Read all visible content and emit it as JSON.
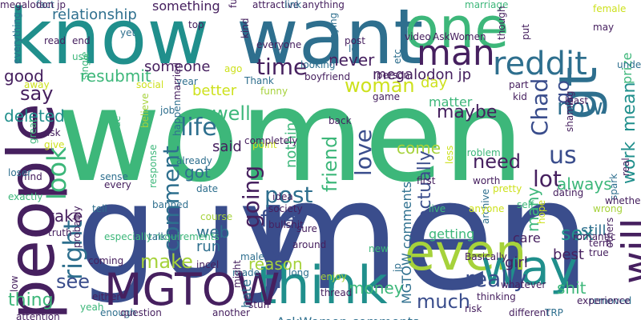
{
  "palette": {
    "dark_purple": "#46205f",
    "blue": "#3a4d8c",
    "teal_blue": "#2e6f8e",
    "teal": "#208f8c",
    "green": "#3db77a",
    "lime": "#a6d23b",
    "yellow": "#cde11d"
  },
  "words": [
    {
      "text": "women",
      "color": "#3db77a"
    },
    {
      "text": "men",
      "color": "#3a4d8c"
    },
    {
      "text": "guy",
      "color": "#3a4d8c"
    },
    {
      "text": "know",
      "color": "#208f8c"
    },
    {
      "text": "want",
      "color": "#2e6f8e"
    },
    {
      "text": "one",
      "color": "#3db77a"
    },
    {
      "text": "people",
      "color": "#46205f"
    },
    {
      "text": "think",
      "color": "#208f8c"
    },
    {
      "text": "even",
      "color": "#a6d23b"
    },
    {
      "text": "way",
      "color": "#208f8c"
    },
    {
      "text": "MGTOW",
      "color": "#46205f"
    },
    {
      "text": "man",
      "color": "#46205f"
    },
    {
      "text": "reddit",
      "color": "#2e6f8e"
    },
    {
      "text": "gt",
      "color": "#2e6f8e"
    },
    {
      "text": "will",
      "color": "#46205f"
    },
    {
      "text": "woman",
      "color": "#cde11d"
    },
    {
      "text": "time",
      "color": "#46205f"
    },
    {
      "text": "life",
      "color": "#2e6f8e"
    },
    {
      "text": "look",
      "color": "#3db77a"
    },
    {
      "text": "right",
      "color": "#2e6f8e"
    },
    {
      "text": "post",
      "color": "#2e6f8e"
    },
    {
      "text": "feel",
      "color": "#3a4d8c"
    },
    {
      "text": "going",
      "color": "#46205f"
    },
    {
      "text": "comment",
      "color": "#2e6f8e"
    },
    {
      "text": "make",
      "color": "#a6d23b"
    },
    {
      "text": "see",
      "color": "#3a4d8c"
    },
    {
      "text": "thing",
      "color": "#3db77a"
    },
    {
      "text": "much",
      "color": "#3a4d8c"
    },
    {
      "text": "really",
      "color": "#3a4d8c"
    },
    {
      "text": "love",
      "color": "#3a4d8c"
    },
    {
      "text": "us",
      "color": "#3a4d8c"
    },
    {
      "text": "lot",
      "color": "#46205f"
    },
    {
      "text": "need",
      "color": "#46205f"
    },
    {
      "text": "friend",
      "color": "#3db77a"
    },
    {
      "text": "work",
      "color": "#208f8c"
    },
    {
      "text": "mean",
      "color": "#208f8c"
    },
    {
      "text": "now",
      "color": "#2e6f8e"
    },
    {
      "text": "go",
      "color": "#3a4d8c"
    },
    {
      "text": "Chad",
      "color": "#3a4d8c"
    },
    {
      "text": "sex",
      "color": "#208f8c"
    },
    {
      "text": "say",
      "color": "#46205f"
    },
    {
      "text": "good",
      "color": "#46205f"
    },
    {
      "text": "resubmit",
      "color": "#3db77a"
    },
    {
      "text": "never",
      "color": "#46205f"
    },
    {
      "text": "someone",
      "color": "#46205f"
    },
    {
      "text": "better",
      "color": "#cde11d"
    },
    {
      "text": "megalodon jp",
      "color": "#46205f"
    },
    {
      "text": "relationship",
      "color": "#2e6f8e"
    },
    {
      "text": "something",
      "color": "#46205f"
    },
    {
      "text": "matter",
      "color": "#3db77a"
    },
    {
      "text": "prize",
      "color": "#3db77a"
    },
    {
      "text": "day",
      "color": "#cde11d"
    },
    {
      "text": "maybe",
      "color": "#46205f"
    },
    {
      "text": "deleted",
      "color": "#208f8c"
    },
    {
      "text": "well",
      "color": "#3db77a"
    },
    {
      "text": "said",
      "color": "#46205f"
    },
    {
      "text": "got",
      "color": "#2e6f8e"
    },
    {
      "text": "take",
      "color": "#46205f"
    },
    {
      "text": "web",
      "color": "#2e6f8e"
    },
    {
      "text": "run",
      "color": "#2e6f8e"
    },
    {
      "text": "reason",
      "color": "#a6d23b"
    },
    {
      "text": "money",
      "color": "#3db77a"
    },
    {
      "text": "getting",
      "color": "#3db77a"
    },
    {
      "text": "care",
      "color": "#46205f"
    },
    {
      "text": "best",
      "color": "#46205f"
    },
    {
      "text": "girl",
      "color": "#46205f"
    },
    {
      "text": "shit",
      "color": "#3db77a"
    },
    {
      "text": "still",
      "color": "#2e6f8e"
    },
    {
      "text": "always",
      "color": "#3db77a"
    },
    {
      "text": "come",
      "color": "#a6d23b"
    },
    {
      "text": "actually",
      "color": "#3a4d8c"
    },
    {
      "text": "nothing",
      "color": "#3db77a"
    },
    {
      "text": "AskWomen comments",
      "color": "#2e6f8e"
    },
    {
      "text": "MGTOW comments",
      "color": "#2e6f8e"
    },
    {
      "text": "hate",
      "color": "#2e6f8e"
    },
    {
      "text": "many",
      "color": "#3db77a"
    },
    {
      "text": "fact",
      "color": "#2e6f8e"
    },
    {
      "text": "attractive anything",
      "color": "#46205f"
    },
    {
      "text": "marriage",
      "color": "#3db77a"
    },
    {
      "text": "fuck",
      "color": "#46205f"
    },
    {
      "text": "everything",
      "color": "#2e6f8e"
    },
    {
      "text": "read",
      "color": "#46205f"
    },
    {
      "text": "end",
      "color": "#46205f"
    },
    {
      "text": "yet",
      "color": "#2e6f8e"
    },
    {
      "text": "use",
      "color": "#3db77a"
    },
    {
      "text": "job",
      "color": "#2e6f8e"
    },
    {
      "text": "kind",
      "color": "#46205f"
    },
    {
      "text": "everyone",
      "color": "#46205f"
    },
    {
      "text": "saying",
      "color": "#2e6f8e"
    },
    {
      "text": "lol",
      "color": "#2e6f8e"
    },
    {
      "text": "etc",
      "color": "#2e6f8e"
    },
    {
      "text": "video",
      "color": "#46205f"
    },
    {
      "text": "AskWomen",
      "color": "#46205f"
    },
    {
      "text": "though",
      "color": "#46205f"
    },
    {
      "text": "put",
      "color": "#46205f"
    },
    {
      "text": "female",
      "color": "#cde11d"
    },
    {
      "text": "may",
      "color": "#46205f"
    },
    {
      "text": "person",
      "color": "#46205f"
    },
    {
      "text": "boyfriend",
      "color": "#46205f"
    },
    {
      "text": "looking",
      "color": "#2e6f8e"
    },
    {
      "text": "Thank",
      "color": "#2e6f8e"
    },
    {
      "text": "funny",
      "color": "#a6d23b"
    },
    {
      "text": "social",
      "color": "#cde11d"
    },
    {
      "text": "year",
      "color": "#2e6f8e"
    },
    {
      "text": "game",
      "color": "#46205f"
    },
    {
      "text": "part",
      "color": "#46205f"
    },
    {
      "text": "single",
      "color": "#3db77a"
    },
    {
      "text": "away",
      "color": "#cde11d"
    },
    {
      "text": "married",
      "color": "#46205f"
    },
    {
      "text": "ask",
      "color": "#46205f"
    },
    {
      "text": "give",
      "color": "#cde11d"
    },
    {
      "text": "dude",
      "color": "#3db77a"
    },
    {
      "text": "sense",
      "color": "#2e6f8e"
    },
    {
      "text": "every",
      "color": "#46205f"
    },
    {
      "text": "find",
      "color": "#46205f"
    },
    {
      "text": "loser",
      "color": "#2e6f8e"
    },
    {
      "text": "great",
      "color": "#3db77a"
    },
    {
      "text": "exactly",
      "color": "#3db77a"
    },
    {
      "text": "truth",
      "color": "#46205f"
    },
    {
      "text": "tell",
      "color": "#2e6f8e"
    },
    {
      "text": "low",
      "color": "#46205f"
    },
    {
      "text": "especially requirements",
      "color": "#3db77a"
    },
    {
      "text": "probably",
      "color": "#46205f"
    },
    {
      "text": "coming",
      "color": "#46205f"
    },
    {
      "text": "either",
      "color": "#46205f"
    },
    {
      "text": "yeah",
      "color": "#3db77a"
    },
    {
      "text": "enough",
      "color": "#2e6f8e"
    },
    {
      "text": "question",
      "color": "#46205f"
    },
    {
      "text": "attention",
      "color": "#46205f"
    },
    {
      "text": "incel",
      "color": "#46205f"
    },
    {
      "text": "made",
      "color": "#2e6f8e"
    },
    {
      "text": "might",
      "color": "#46205f"
    },
    {
      "text": "long",
      "color": "#2e6f8e"
    },
    {
      "text": "enjoy",
      "color": "#a6d23b"
    },
    {
      "text": "stuff",
      "color": "#46205f"
    },
    {
      "text": "another",
      "color": "#46205f"
    },
    {
      "text": "thread",
      "color": "#46205f"
    },
    {
      "text": "Basically",
      "color": "#46205f"
    },
    {
      "text": "risk",
      "color": "#46205f"
    },
    {
      "text": "different",
      "color": "#46205f"
    },
    {
      "text": "TRP",
      "color": "#2e6f8e"
    },
    {
      "text": "removed",
      "color": "#2e6f8e"
    },
    {
      "text": "term",
      "color": "#46205f"
    },
    {
      "text": "true",
      "color": "#46205f"
    },
    {
      "text": "others",
      "color": "#46205f"
    },
    {
      "text": "wrong",
      "color": "#a6d23b"
    },
    {
      "text": "spark",
      "color": "#2e6f8e"
    },
    {
      "text": "whether",
      "color": "#46205f"
    },
    {
      "text": "real",
      "color": "#46205f"
    },
    {
      "text": "understand",
      "color": "#2e6f8e"
    },
    {
      "text": "self",
      "color": "#3db77a"
    },
    {
      "text": "pretty",
      "color": "#cde11d"
    },
    {
      "text": "worth",
      "color": "#46205f"
    },
    {
      "text": "whatever",
      "color": "#46205f"
    },
    {
      "text": "problem",
      "color": "#3db77a"
    },
    {
      "text": "first",
      "color": "#46205f"
    },
    {
      "text": "less",
      "color": "#cde11d"
    },
    {
      "text": "live",
      "color": "#3db77a"
    },
    {
      "text": "idea",
      "color": "#46205f"
    },
    {
      "text": "society",
      "color": "#46205f"
    },
    {
      "text": "bullshit",
      "color": "#46205f"
    },
    {
      "text": "sure",
      "color": "#46205f"
    },
    {
      "text": "around",
      "color": "#46205f"
    },
    {
      "text": "male",
      "color": "#2e6f8e"
    },
    {
      "text": "back",
      "color": "#46205f"
    },
    {
      "text": "happen",
      "color": "#2e6f8e"
    },
    {
      "text": "believe",
      "color": "#a6d23b"
    },
    {
      "text": "response",
      "color": "#3db77a"
    },
    {
      "text": "course",
      "color": "#a6d23b"
    },
    {
      "text": "archive",
      "color": "#2e6f8e"
    },
    {
      "text": "hope",
      "color": "#cde11d"
    },
    {
      "text": "dating",
      "color": "#46205f"
    },
    {
      "text": "least",
      "color": "#46205f"
    },
    {
      "text": "shaming",
      "color": "#46205f"
    },
    {
      "text": "kid",
      "color": "#46205f"
    },
    {
      "text": "top",
      "color": "#46205f"
    },
    {
      "text": "link",
      "color": "#2e6f8e"
    },
    {
      "text": "already",
      "color": "#2e6f8e"
    },
    {
      "text": "date",
      "color": "#2e6f8e"
    },
    {
      "text": "talk",
      "color": "#2e6f8e"
    },
    {
      "text": "banned",
      "color": "#2e6f8e"
    },
    {
      "text": "point",
      "color": "#cde11d"
    },
    {
      "text": "completely",
      "color": "#46205f"
    },
    {
      "text": "anyone",
      "color": "#cde11d"
    },
    {
      "text": "thinking",
      "color": "#46205f"
    },
    {
      "text": "romantic",
      "color": "#46205f"
    },
    {
      "text": "experience",
      "color": "#46205f"
    },
    {
      "text": "new",
      "color": "#3db77a"
    },
    {
      "text": "post",
      "color": "#46205f"
    },
    {
      "text": "ago",
      "color": "#cde11d"
    },
    {
      "text": "jp",
      "color": "#2e6f8e"
    },
    {
      "text": "megalodon jp",
      "color": "#46205f"
    }
  ]
}
